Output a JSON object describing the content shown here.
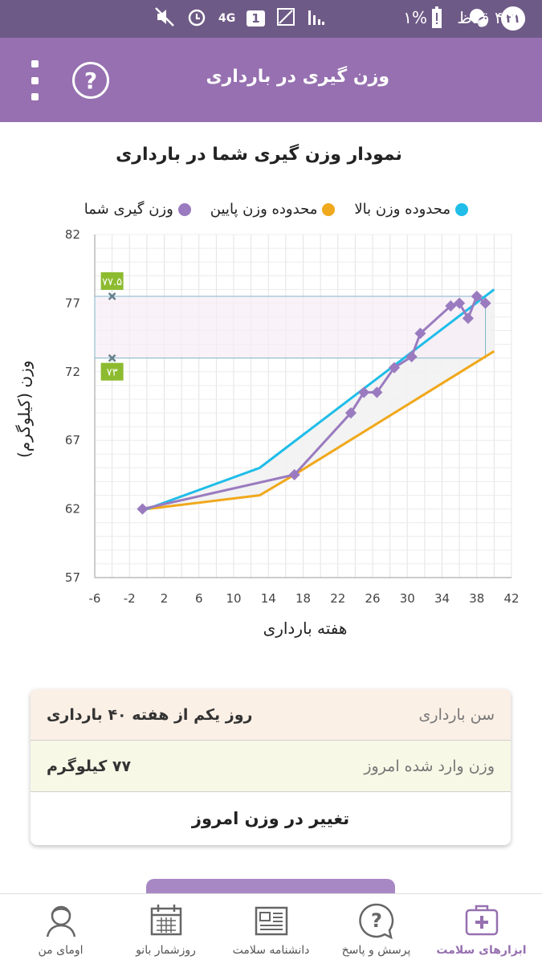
{
  "status_bar": {
    "time": "۴:۲۵ ق.ظ",
    "battery": "۱%",
    "notification_count": "۲۱",
    "network": "4G",
    "sim": "1"
  },
  "header": {
    "title": "وزن گیری در بارداری",
    "help_label": "?"
  },
  "chart_title": "نمودار وزن گیری شما در بارداری",
  "legend": {
    "upper": "محدوده وزن بالا",
    "lower": "محدوده وزن پایین",
    "yours": "وزن گیری شما"
  },
  "colors": {
    "upper": "#1fbde8",
    "lower": "#f0a81c",
    "yours": "#9a7bbf",
    "accent": "#9670b0",
    "marker_badge": "#8dbb30"
  },
  "chart_data": {
    "type": "line",
    "title": "نمودار وزن گیری شما در بارداری",
    "xlabel": "هفته بارداری",
    "ylabel": "وزن (کیلوگرم)",
    "xlim": [
      -6,
      42
    ],
    "ylim": [
      57,
      82
    ],
    "x_ticks": [
      -6,
      -2,
      2,
      6,
      10,
      14,
      18,
      22,
      26,
      30,
      34,
      38,
      42
    ],
    "y_ticks": [
      57,
      62,
      67,
      72,
      77,
      82
    ],
    "grid": true,
    "legend_position": "top",
    "series": [
      {
        "name": "محدوده وزن بالا",
        "x": [
          0,
          13,
          40
        ],
        "y": [
          62,
          65,
          78
        ]
      },
      {
        "name": "محدوده وزن پایین",
        "x": [
          0,
          13,
          17,
          40
        ],
        "y": [
          62,
          63,
          64.5,
          73.5
        ]
      },
      {
        "name": "وزن گیری شما",
        "x": [
          -0.5,
          17,
          23.5,
          25,
          26.5,
          28.5,
          30.5,
          31.5,
          35,
          36,
          37,
          38,
          39
        ],
        "y": [
          62,
          64.5,
          69,
          70.5,
          70.5,
          72.3,
          73.1,
          74.8,
          76.8,
          77,
          75.9,
          77.5,
          77
        ]
      }
    ],
    "target_range": {
      "low": 73,
      "high": 77.5,
      "low_label": "۷۳",
      "high_label": "۷۷.۵"
    }
  },
  "info": {
    "age_label": "سن بارداری",
    "age_value": "روز یکم از هفته ۴۰ بارداری",
    "weight_label": "وزن وارد شده امروز",
    "weight_value": "۷۷ کیلوگرم",
    "change_label": "تغییر در وزن امروز"
  },
  "nav": {
    "items": [
      {
        "label": "ابزارهای سلامت",
        "icon": "medical-kit-icon",
        "active": true
      },
      {
        "label": "پرسش و پاسخ",
        "icon": "question-bubble-icon",
        "active": false
      },
      {
        "label": "دانشنامه سلامت",
        "icon": "newspaper-icon",
        "active": false
      },
      {
        "label": "روزشمار بانو",
        "icon": "calendar-icon",
        "active": false
      },
      {
        "label": "اومای من",
        "icon": "profile-icon",
        "active": false
      }
    ]
  }
}
